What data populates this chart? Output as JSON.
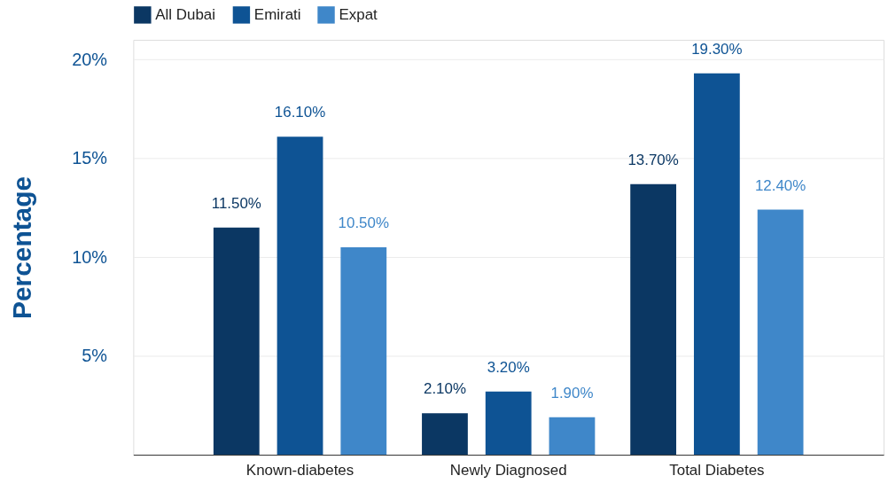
{
  "chart_data": {
    "type": "bar",
    "ylabel": "Percentage",
    "categories": [
      "Known-diabetes",
      "Newly Diagnosed",
      "Total Diabetes"
    ],
    "series": [
      {
        "name": "All Dubai",
        "color": "#0b3763",
        "values": [
          11.5,
          2.1,
          13.7
        ],
        "value_labels": [
          "11.50%",
          "2.10%",
          "13.70%"
        ]
      },
      {
        "name": "Emirati",
        "color": "#0e5394",
        "values": [
          16.1,
          3.2,
          19.3
        ],
        "value_labels": [
          "16.10%",
          "3.20%",
          "19.30%"
        ]
      },
      {
        "name": "Expat",
        "color": "#3f87c9",
        "values": [
          10.5,
          1.9,
          12.4
        ],
        "value_labels": [
          "10.50%",
          "1.90%",
          "12.40%"
        ]
      }
    ],
    "ylim": [
      0,
      21
    ],
    "yticks": [
      {
        "value": 5,
        "label": "5%"
      },
      {
        "value": 10,
        "label": "10%"
      },
      {
        "value": 15,
        "label": "15%"
      },
      {
        "value": 20,
        "label": "20%"
      }
    ],
    "grid": "y",
    "legend": "top"
  }
}
